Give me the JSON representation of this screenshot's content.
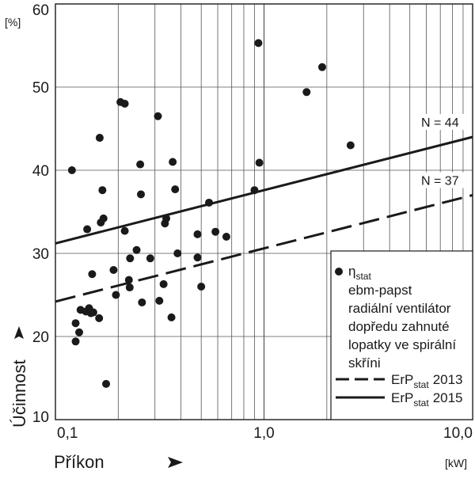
{
  "chart_data": {
    "type": "scatter",
    "x_scale": "log",
    "xlim": [
      0.1,
      10.0
    ],
    "ylim": [
      10,
      60
    ],
    "x_ticks": [
      "0,1",
      "1,0",
      "10,0"
    ],
    "y_ticks": [
      "10",
      "20",
      "30",
      "40",
      "50",
      "60"
    ],
    "y_unit": "[%]",
    "x_unit": "[kW]",
    "ylabel": "Účinnost",
    "xlabel": "Příkon",
    "grid": true,
    "legend_placement": "bottom-right",
    "legend": {
      "marker_sub": "stat",
      "marker_symbol": "η",
      "lines": [
        "ebm-papst",
        "radiální ventilátor",
        "dopředu zahnuté",
        "lopatky ve spirální",
        "skříni"
      ],
      "dashed_label": "ErP",
      "dashed_sub": "stat",
      "dashed_year": "2013",
      "solid_label": "ErP",
      "solid_sub": "stat",
      "solid_year": "2015"
    },
    "series": [
      {
        "name": "ηstat",
        "points": [
          [
            0.12,
            40.0
          ],
          [
            0.125,
            21.6
          ],
          [
            0.125,
            19.4
          ],
          [
            0.13,
            20.5
          ],
          [
            0.132,
            23.2
          ],
          [
            0.14,
            23.0
          ],
          [
            0.142,
            32.9
          ],
          [
            0.145,
            23.4
          ],
          [
            0.148,
            22.8
          ],
          [
            0.15,
            27.5
          ],
          [
            0.152,
            22.9
          ],
          [
            0.162,
            22.2
          ],
          [
            0.163,
            43.9
          ],
          [
            0.165,
            33.7
          ],
          [
            0.168,
            37.6
          ],
          [
            0.17,
            34.2
          ],
          [
            0.175,
            14.3
          ],
          [
            0.19,
            28.0
          ],
          [
            0.195,
            25.0
          ],
          [
            0.205,
            48.2
          ],
          [
            0.215,
            48.0
          ],
          [
            0.215,
            32.7
          ],
          [
            0.225,
            26.8
          ],
          [
            0.227,
            25.9
          ],
          [
            0.228,
            29.4
          ],
          [
            0.245,
            30.4
          ],
          [
            0.255,
            40.7
          ],
          [
            0.257,
            37.1
          ],
          [
            0.26,
            24.1
          ],
          [
            0.285,
            29.4
          ],
          [
            0.31,
            46.5
          ],
          [
            0.315,
            24.3
          ],
          [
            0.33,
            26.3
          ],
          [
            0.335,
            33.6
          ],
          [
            0.34,
            34.2
          ],
          [
            0.36,
            22.3
          ],
          [
            0.365,
            41.0
          ],
          [
            0.375,
            37.7
          ],
          [
            0.385,
            30.0
          ],
          [
            0.48,
            32.3
          ],
          [
            0.48,
            29.5
          ],
          [
            0.5,
            26.0
          ],
          [
            0.545,
            36.1
          ],
          [
            0.585,
            32.6
          ],
          [
            0.66,
            32.0
          ],
          [
            0.9,
            37.6
          ],
          [
            0.94,
            55.3
          ],
          [
            0.95,
            40.9
          ],
          [
            1.6,
            49.4
          ],
          [
            1.9,
            52.4
          ],
          [
            2.6,
            43.0
          ]
        ]
      }
    ],
    "lines": [
      {
        "label": "N = 44",
        "style": "solid",
        "points": [
          [
            0.1,
            31.2
          ],
          [
            10.0,
            44.0
          ]
        ]
      },
      {
        "label": "N = 37",
        "style": "dashed",
        "points": [
          [
            0.1,
            24.2
          ],
          [
            10.0,
            37.0
          ]
        ]
      }
    ]
  }
}
